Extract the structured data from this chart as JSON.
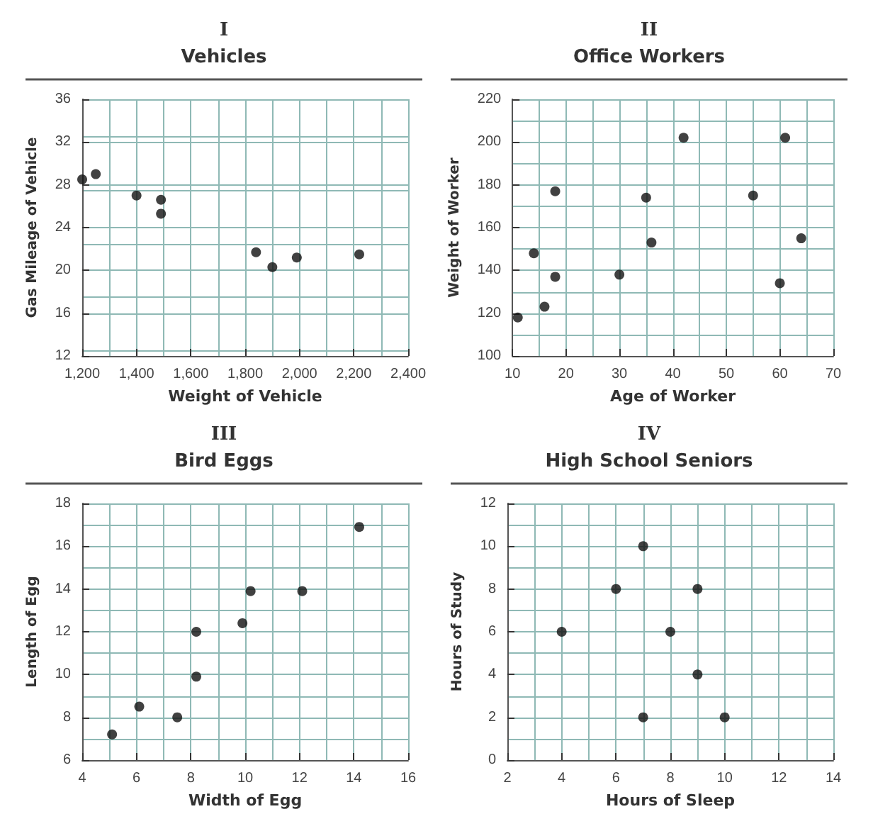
{
  "chart_data": [
    {
      "type": "scatter",
      "title": "I",
      "subtitle": "Vehicles",
      "xlabel": "Weight of Vehicle",
      "ylabel": "Gas Mileage of Vehicle",
      "color": "#111111",
      "marker": "circle",
      "grid": true,
      "x": [
        1200,
        1250,
        1400,
        1490,
        1490,
        1840,
        1900,
        1990,
        2220
      ],
      "values": [
        28.5,
        29,
        27,
        26.6,
        25.3,
        21.7,
        20.3,
        21.2,
        21.5
      ],
      "xlim": [
        1200,
        2400
      ],
      "xticks": [
        {
          "value": 1200,
          "label": "1,200"
        },
        {
          "value": 1400,
          "label": "1,400"
        },
        {
          "value": 1600,
          "label": "1,600"
        },
        {
          "value": 1800,
          "label": "1,800"
        },
        {
          "value": 2000,
          "label": "2,000"
        },
        {
          "value": 2200,
          "label": "2,200"
        },
        {
          "value": 2400,
          "label": "2,400"
        }
      ],
      "ylim": [
        12,
        36
      ],
      "yticks": [
        12,
        16,
        20,
        24,
        28,
        32,
        36
      ]
    },
    {
      "type": "scatter",
      "title": "II",
      "subtitle": "Office Workers",
      "xlabel": "Age of Worker",
      "ylabel": "Weight of Worker",
      "color": "#111111",
      "marker": "circle",
      "grid": true,
      "x": [
        11,
        14,
        16,
        18,
        18,
        30,
        35,
        36,
        42,
        55,
        60,
        61,
        64
      ],
      "values": [
        118,
        148,
        123,
        177,
        137,
        138,
        174,
        153,
        202,
        175,
        134,
        202,
        155
      ],
      "xlim": [
        10,
        70
      ],
      "xticks": [
        10,
        20,
        30,
        40,
        50,
        60,
        70
      ],
      "ylim": [
        100,
        220
      ],
      "yticks": [
        100,
        120,
        140,
        160,
        180,
        200,
        220
      ]
    },
    {
      "type": "scatter",
      "title": "III",
      "subtitle": "Bird Eggs",
      "xlabel": "Width of Egg",
      "ylabel": "Length of Egg",
      "color": "#111111",
      "marker": "circle",
      "grid": true,
      "x": [
        5.1,
        6.1,
        7.5,
        8.2,
        8.2,
        9.9,
        10.2,
        12.1,
        14.2
      ],
      "values": [
        7.2,
        8.5,
        8,
        12,
        9.9,
        12.4,
        13.9,
        13.9,
        16.9
      ],
      "xlim": [
        4,
        16
      ],
      "xticks": [
        4,
        6,
        8,
        10,
        12,
        14,
        16
      ],
      "ylim": [
        6,
        18
      ],
      "yticks": [
        6,
        8,
        10,
        12,
        14,
        16,
        18
      ]
    },
    {
      "type": "scatter",
      "title": "IV",
      "subtitle": "High School Seniors",
      "xlabel": "Hours of Sleep",
      "ylabel": "Hours of Study",
      "color": "#111111",
      "marker": "circle",
      "grid": true,
      "x": [
        4,
        6,
        7,
        7,
        8,
        9,
        9,
        10
      ],
      "values": [
        6,
        8,
        10,
        2,
        6,
        8,
        4,
        2
      ],
      "xlim": [
        2,
        14
      ],
      "xticks": [
        2,
        4,
        6,
        8,
        10,
        12,
        14
      ],
      "ylim": [
        0,
        12
      ],
      "yticks": [
        0,
        2,
        4,
        6,
        8,
        10,
        12
      ]
    }
  ]
}
